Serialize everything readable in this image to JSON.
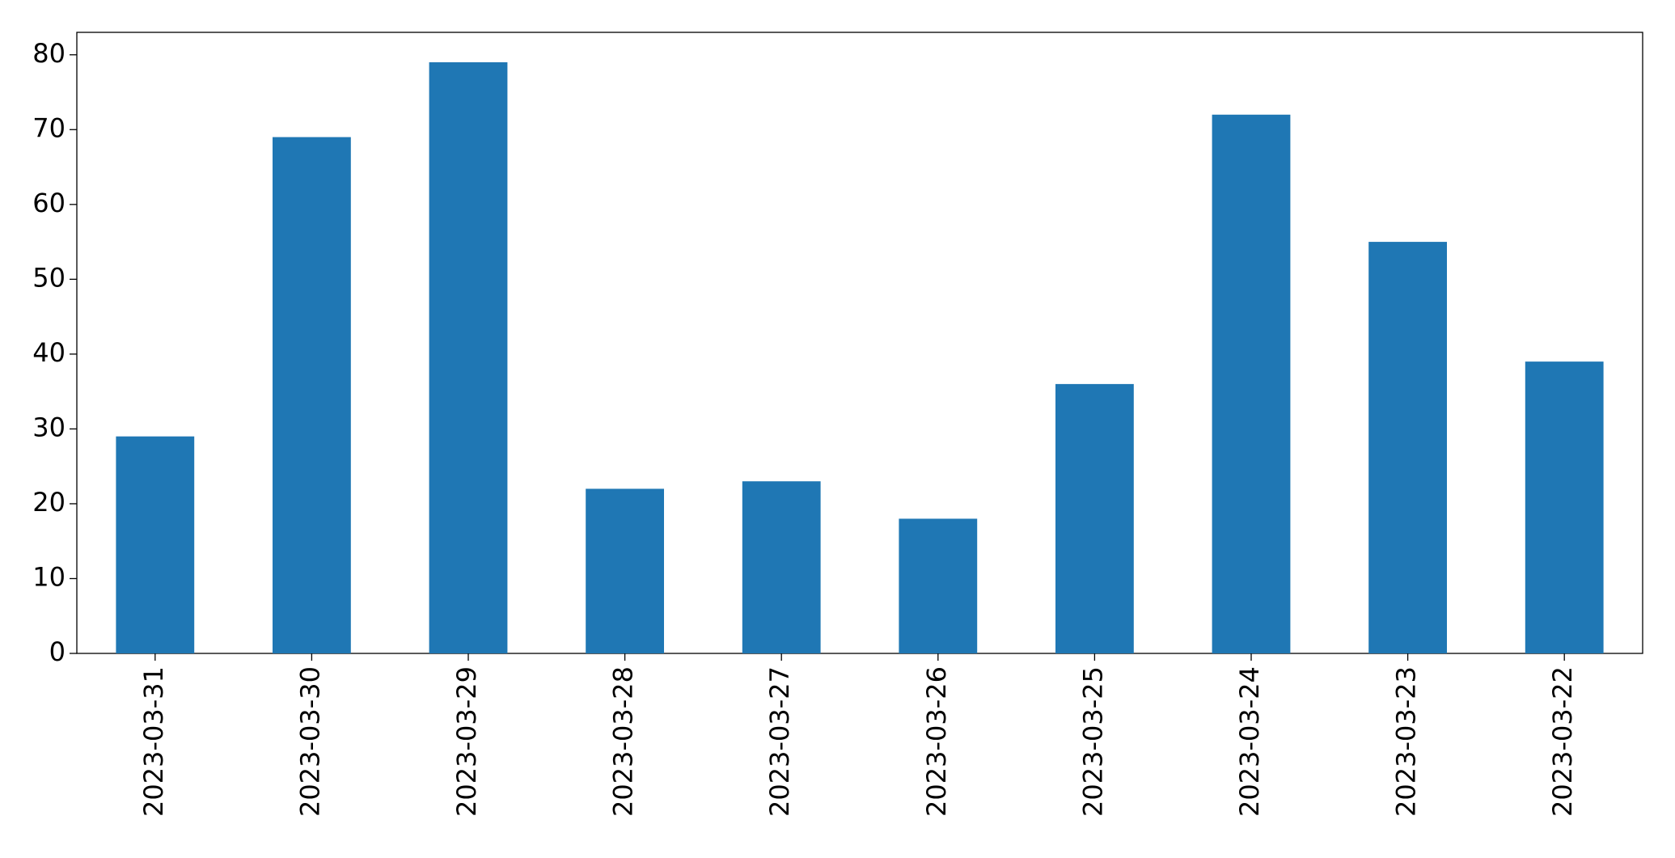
{
  "chart_data": {
    "type": "bar",
    "categories": [
      "2023-03-31",
      "2023-03-30",
      "2023-03-29",
      "2023-03-28",
      "2023-03-27",
      "2023-03-26",
      "2023-03-25",
      "2023-03-24",
      "2023-03-23",
      "2023-03-22"
    ],
    "values": [
      29,
      69,
      79,
      22,
      23,
      18,
      36,
      72,
      55,
      39
    ],
    "color": "#1f77b4",
    "ylim": [
      0,
      83
    ],
    "yticks": [
      0,
      10,
      20,
      30,
      40,
      50,
      60,
      70,
      80
    ],
    "grid": false
  }
}
